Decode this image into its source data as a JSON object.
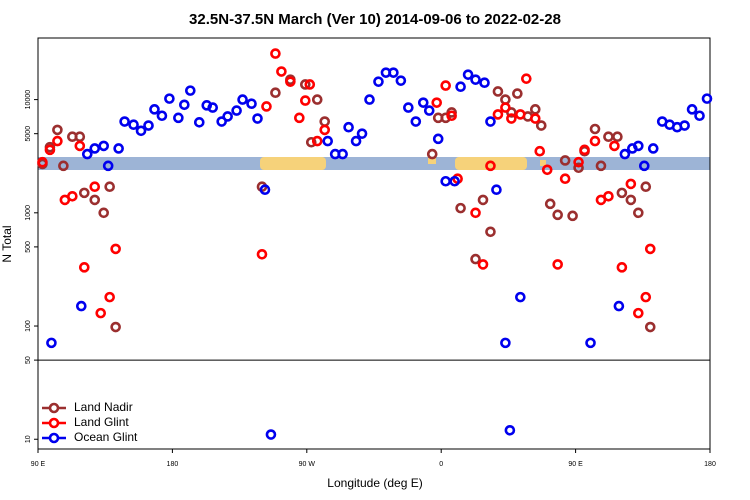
{
  "chart_data": {
    "type": "scatter",
    "title": "32.5N-37.5N March (Ver 10)   2014-09-06 to 2022-02-28",
    "x_label": "Longitude (deg E)",
    "y_label": "N Total",
    "xlim": [
      90,
      540
    ],
    "xticks": [
      {
        "value": 90,
        "label": "90 E"
      },
      180,
      {
        "value": 270,
        "label": "90 W"
      },
      {
        "value": 360,
        "label": "0"
      },
      {
        "value": 450,
        "label": "90 E"
      },
      180
    ],
    "ylim": [
      8.2,
      35000
    ],
    "yscale": "log",
    "yticks": [
      10,
      50,
      100,
      500,
      1000,
      5000,
      10000
    ],
    "reference_line": 50,
    "legend": "bottom-left",
    "series": [
      {
        "name": "Land Nadir",
        "color": "#9b2f2f",
        "x": [
          93,
          98,
          103,
          107,
          113,
          118,
          121,
          128,
          134,
          138,
          142,
          240,
          249,
          259,
          269,
          273,
          277,
          282,
          354,
          358,
          363,
          367,
          373,
          383,
          388,
          393,
          398,
          403,
          407,
          411,
          418,
          423,
          427,
          433,
          438,
          443,
          448,
          452,
          456,
          463,
          467,
          472,
          478,
          481,
          487,
          492,
          497,
          500
        ],
        "values": [
          2700,
          3800,
          5400,
          2600,
          4700,
          4700,
          1500,
          1300,
          1000,
          1700,
          98,
          1700,
          11500,
          15000,
          13600,
          4200,
          10000,
          6400,
          3300,
          6900,
          6900,
          7700,
          1100,
          390,
          1300,
          680,
          11800,
          10000,
          7700,
          11300,
          7100,
          8200,
          5900,
          1200,
          960,
          2900,
          940,
          2500,
          3500,
          5500,
          2600,
          4700,
          4700,
          1500,
          1300,
          1000,
          1700,
          98
        ]
      },
      {
        "name": "Land Glint",
        "color": "#ff0000",
        "x": [
          93,
          98,
          103,
          108,
          113,
          118,
          121,
          128,
          132,
          138,
          142,
          240,
          243,
          249,
          253,
          259,
          265,
          269,
          272,
          277,
          282,
          357,
          363,
          367,
          371,
          383,
          388,
          393,
          398,
          403,
          407,
          413,
          417,
          423,
          426,
          431,
          438,
          443,
          452,
          456,
          463,
          467,
          472,
          476,
          481,
          487,
          492,
          497,
          500
        ],
        "values": [
          2800,
          3600,
          4300,
          1300,
          1400,
          3900,
          330,
          1700,
          130,
          180,
          480,
          430,
          8700,
          25500,
          17700,
          14400,
          6900,
          9800,
          13600,
          4300,
          5400,
          9400,
          13300,
          7200,
          2000,
          1000,
          350,
          2600,
          7400,
          8500,
          6800,
          7400,
          15300,
          6800,
          3500,
          2400,
          350,
          2000,
          2800,
          3600,
          4300,
          1300,
          1400,
          3900,
          330,
          1800,
          130,
          180,
          480
        ]
      },
      {
        "name": "Ocean Glint",
        "color": "#0000ee",
        "x": [
          99,
          119,
          123,
          128,
          134,
          137,
          144,
          148,
          154,
          159,
          164,
          168,
          173,
          178,
          184,
          188,
          192,
          198,
          203,
          207,
          213,
          217,
          223,
          227,
          233,
          237,
          242,
          246,
          284,
          289,
          294,
          298,
          303,
          307,
          312,
          318,
          323,
          328,
          333,
          338,
          343,
          348,
          352,
          358,
          363,
          369,
          373,
          378,
          383,
          389,
          393,
          397,
          403,
          406,
          413,
          460,
          479,
          483,
          488,
          492,
          496,
          502,
          508,
          513,
          518,
          523,
          528,
          533,
          538
        ],
        "values": [
          71,
          150,
          3300,
          3700,
          3900,
          2600,
          3700,
          6400,
          6000,
          5300,
          5900,
          8200,
          7200,
          10200,
          6900,
          9000,
          12000,
          6300,
          8900,
          8500,
          6400,
          7100,
          8000,
          10000,
          9200,
          6800,
          1600,
          11,
          4300,
          3300,
          3300,
          5700,
          4300,
          5000,
          10000,
          14400,
          17300,
          17300,
          14700,
          8500,
          6400,
          9400,
          8000,
          4500,
          1900,
          1900,
          13000,
          16600,
          15000,
          14100,
          6400,
          1600,
          71,
          12,
          180,
          71,
          150,
          3300,
          3700,
          3900,
          2600,
          3700,
          6400,
          6000,
          5700,
          5900,
          8200,
          7200,
          10200
        ]
      }
    ]
  }
}
